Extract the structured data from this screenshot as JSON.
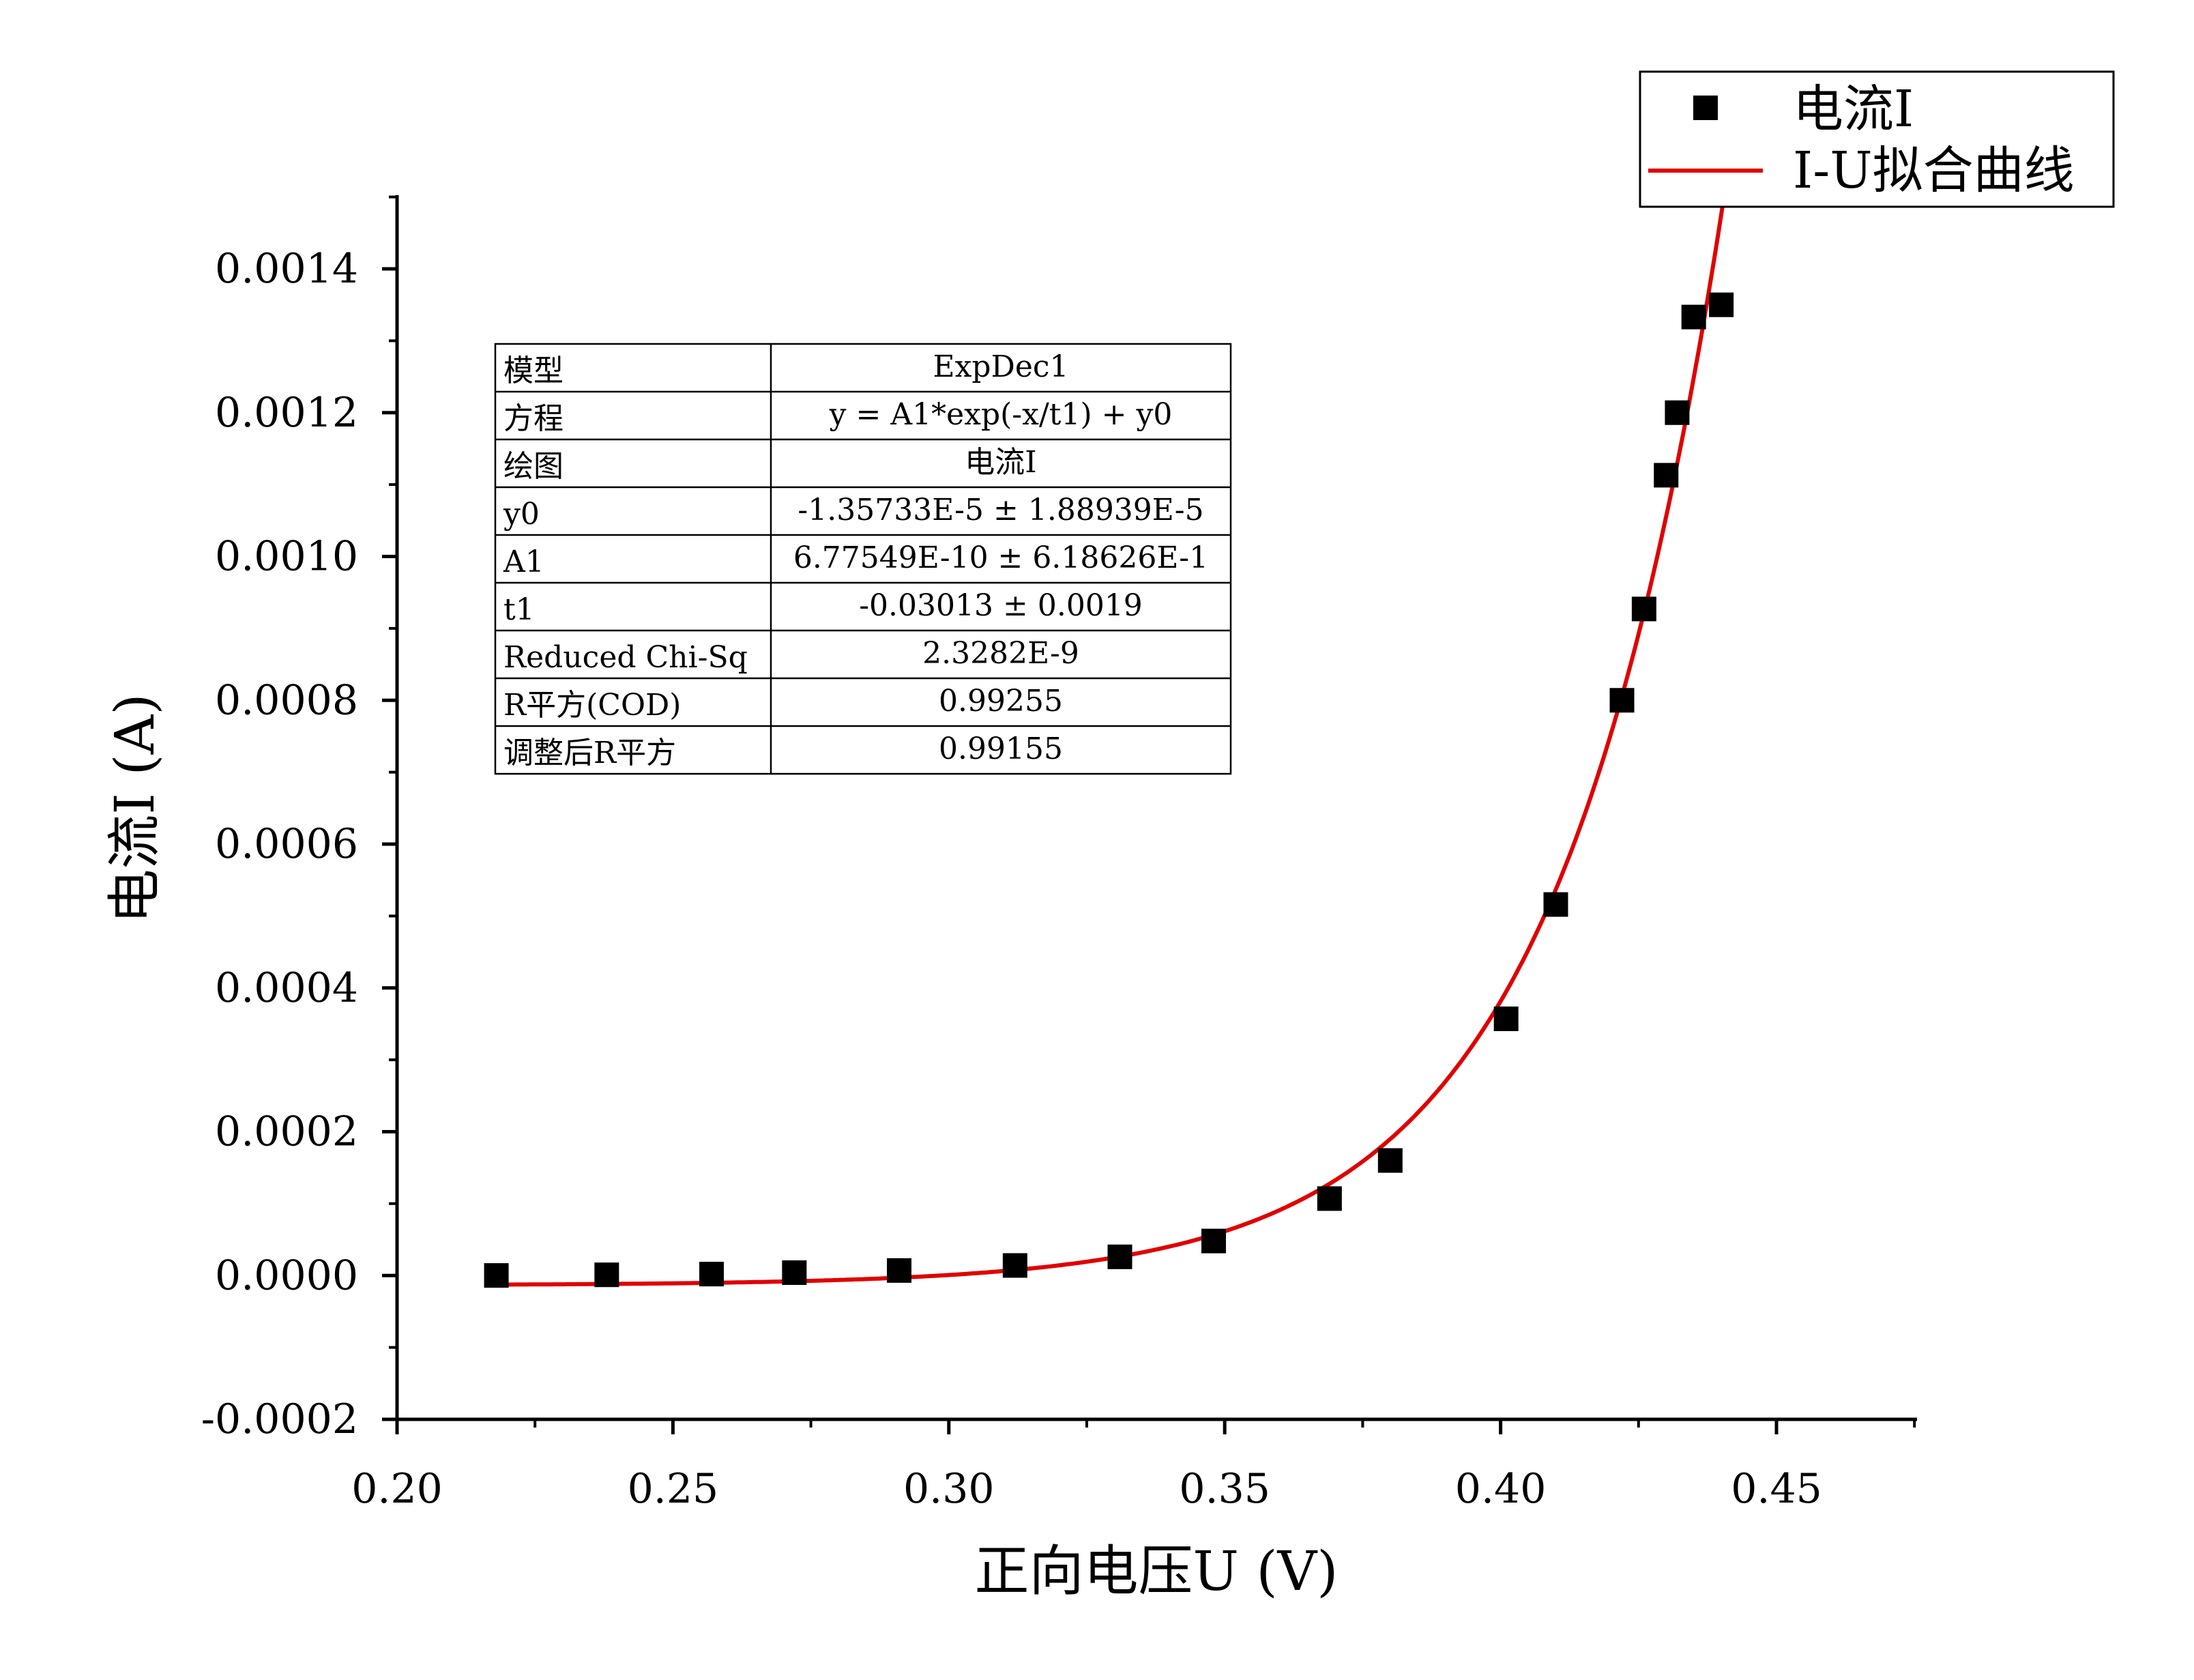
{
  "chart_data": {
    "type": "scatter",
    "xlabel": "正向电压U (V)",
    "ylabel": "电流I (A)",
    "xlim": [
      0.2,
      0.475
    ],
    "ylim": [
      -0.0002,
      0.0015
    ],
    "x_ticks": [
      "0.20",
      "0.25",
      "0.30",
      "0.35",
      "0.40",
      "0.45"
    ],
    "y_ticks": [
      "-0.0002",
      "0.0000",
      "0.0002",
      "0.0004",
      "0.0006",
      "0.0008",
      "0.0010",
      "0.0012",
      "0.0014"
    ],
    "grid": false,
    "legend_placement": "top-right",
    "series": [
      {
        "name": "电流I",
        "kind": "scatter",
        "marker": "square",
        "color": "#000000",
        "x": [
          0.218,
          0.238,
          0.257,
          0.272,
          0.291,
          0.312,
          0.331,
          0.348,
          0.369,
          0.38,
          0.401,
          0.41,
          0.422,
          0.426,
          0.43,
          0.432,
          0.435,
          0.44
        ],
        "y": [
          1e-07,
          1e-06,
          2e-06,
          4e-06,
          7e-06,
          1.4e-05,
          2.6e-05,
          4.8e-05,
          0.000107,
          0.00016,
          0.000357,
          0.000516,
          0.0008,
          0.000927,
          0.001113,
          0.0012,
          0.001333,
          0.00135
        ]
      },
      {
        "name": "I-U拟合曲线",
        "kind": "line",
        "color": "#e00000",
        "model": {
          "y0": -1.35733e-05,
          "A1": 6.77549e-10,
          "t1": -0.03013
        },
        "x_range": [
          0.218,
          0.4415
        ]
      }
    ]
  },
  "fit_table": {
    "rows": [
      {
        "label": "模型",
        "value": "ExpDec1"
      },
      {
        "label": "方程",
        "value": "y = A1*exp(-x/t1) + y0"
      },
      {
        "label": "绘图",
        "value": "电流I"
      },
      {
        "label": "y0",
        "value": "-1.35733E-5 ± 1.88939E-5"
      },
      {
        "label": "A1",
        "value": "6.77549E-10 ± 6.18626E-1"
      },
      {
        "label": "t1",
        "value": "-0.03013 ± 0.0019"
      },
      {
        "label": "Reduced Chi-Sq",
        "value": "2.3282E-9"
      },
      {
        "label": "R平方(COD)",
        "value": "0.99255"
      },
      {
        "label": "调整后R平方",
        "value": "0.99155"
      }
    ]
  }
}
